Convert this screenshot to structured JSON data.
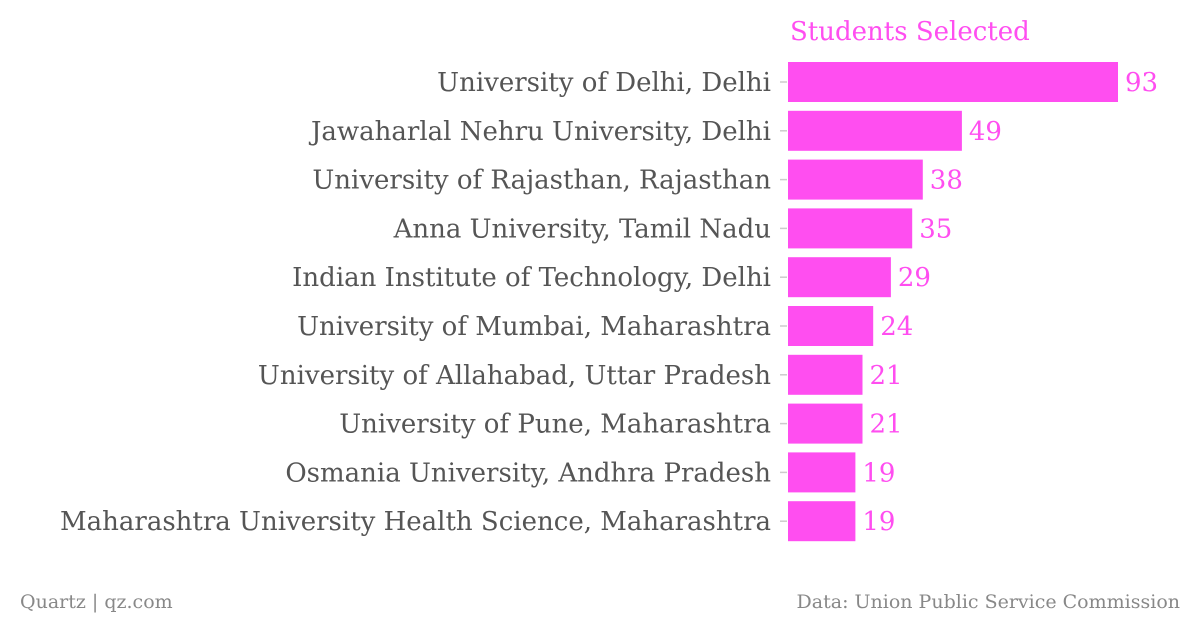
{
  "chart_data": {
    "type": "bar",
    "orientation": "horizontal",
    "title": "",
    "series": [
      {
        "name": "Students Selected",
        "values": [
          93,
          49,
          38,
          35,
          29,
          24,
          21,
          21,
          19,
          19
        ]
      }
    ],
    "categories": [
      "University of Delhi, Delhi",
      "Jawaharlal Nehru University, Delhi",
      "University of Rajasthan, Rajasthan",
      "Anna University, Tamil Nadu",
      "Indian Institute of Technology, Delhi",
      "University of Mumbai, Maharashtra",
      "University of Allahabad, Uttar Pradesh",
      "University of Pune, Maharashtra",
      "Osmania University, Andhra Pradesh",
      "Maharashtra University Health Science, Maharashtra"
    ],
    "xlim": [
      0,
      93
    ],
    "grid": false,
    "legend": "series title above bars"
  },
  "footer": {
    "credit": "Quartz | qz.com",
    "source": "Data: Union Public Service Commission"
  },
  "colors": {
    "bar": "#ff4ef0",
    "series_title": "#ff4ef0",
    "value_label": "#ff4ef0",
    "category_label": "#555555",
    "tick": "#cccccc",
    "footer": "#888888"
  }
}
